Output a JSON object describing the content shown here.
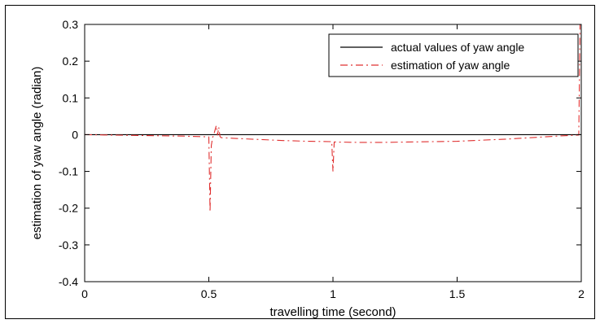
{
  "chart_data": {
    "type": "line",
    "title": "",
    "xlabel": "travelling time (second)",
    "ylabel": "estimation of yaw angle (radian)",
    "xlim": [
      0,
      2
    ],
    "ylim": [
      -0.4,
      0.3
    ],
    "xticks": [
      0,
      0.5,
      1,
      1.5,
      2
    ],
    "xtick_labels": [
      "0",
      "0.5",
      "1",
      "1.5",
      "2"
    ],
    "yticks": [
      -0.4,
      -0.3,
      -0.2,
      -0.1,
      0,
      0.1,
      0.2,
      0.3
    ],
    "ytick_labels": [
      "-0.4",
      "-0.3",
      "-0.2",
      "-0.1",
      "0",
      "0.1",
      "0.2",
      "0.3"
    ],
    "grid": false,
    "legend": {
      "position": "top-right",
      "entries": [
        "actual values of yaw angle",
        "estimation of yaw angle"
      ]
    },
    "series": [
      {
        "name": "actual values of yaw angle",
        "color": "#000000",
        "style": "solid",
        "x": [
          0,
          2
        ],
        "y": [
          0,
          0
        ]
      },
      {
        "name": "estimation of yaw angle",
        "color": "#e03030",
        "style": "dashdot",
        "x": [
          0,
          0.1,
          0.2,
          0.3,
          0.4,
          0.5,
          0.505,
          0.51,
          0.515,
          0.52,
          0.53,
          0.535,
          0.54,
          0.545,
          0.55,
          0.6,
          0.7,
          0.8,
          0.9,
          0.995,
          1.0,
          1.005,
          1.01,
          1.1,
          1.2,
          1.3,
          1.4,
          1.5,
          1.6,
          1.7,
          1.8,
          1.9,
          1.99,
          1.995,
          2.0
        ],
        "y": [
          0,
          -0.001,
          -0.002,
          -0.003,
          -0.004,
          -0.006,
          -0.21,
          -0.03,
          -0.008,
          0.0,
          0.025,
          -0.002,
          0.02,
          -0.005,
          -0.008,
          -0.01,
          -0.013,
          -0.016,
          -0.018,
          -0.019,
          -0.1,
          -0.02,
          -0.02,
          -0.021,
          -0.021,
          -0.02,
          -0.019,
          -0.018,
          -0.015,
          -0.012,
          -0.008,
          -0.004,
          -0.001,
          0.3,
          0.3
        ]
      }
    ]
  }
}
